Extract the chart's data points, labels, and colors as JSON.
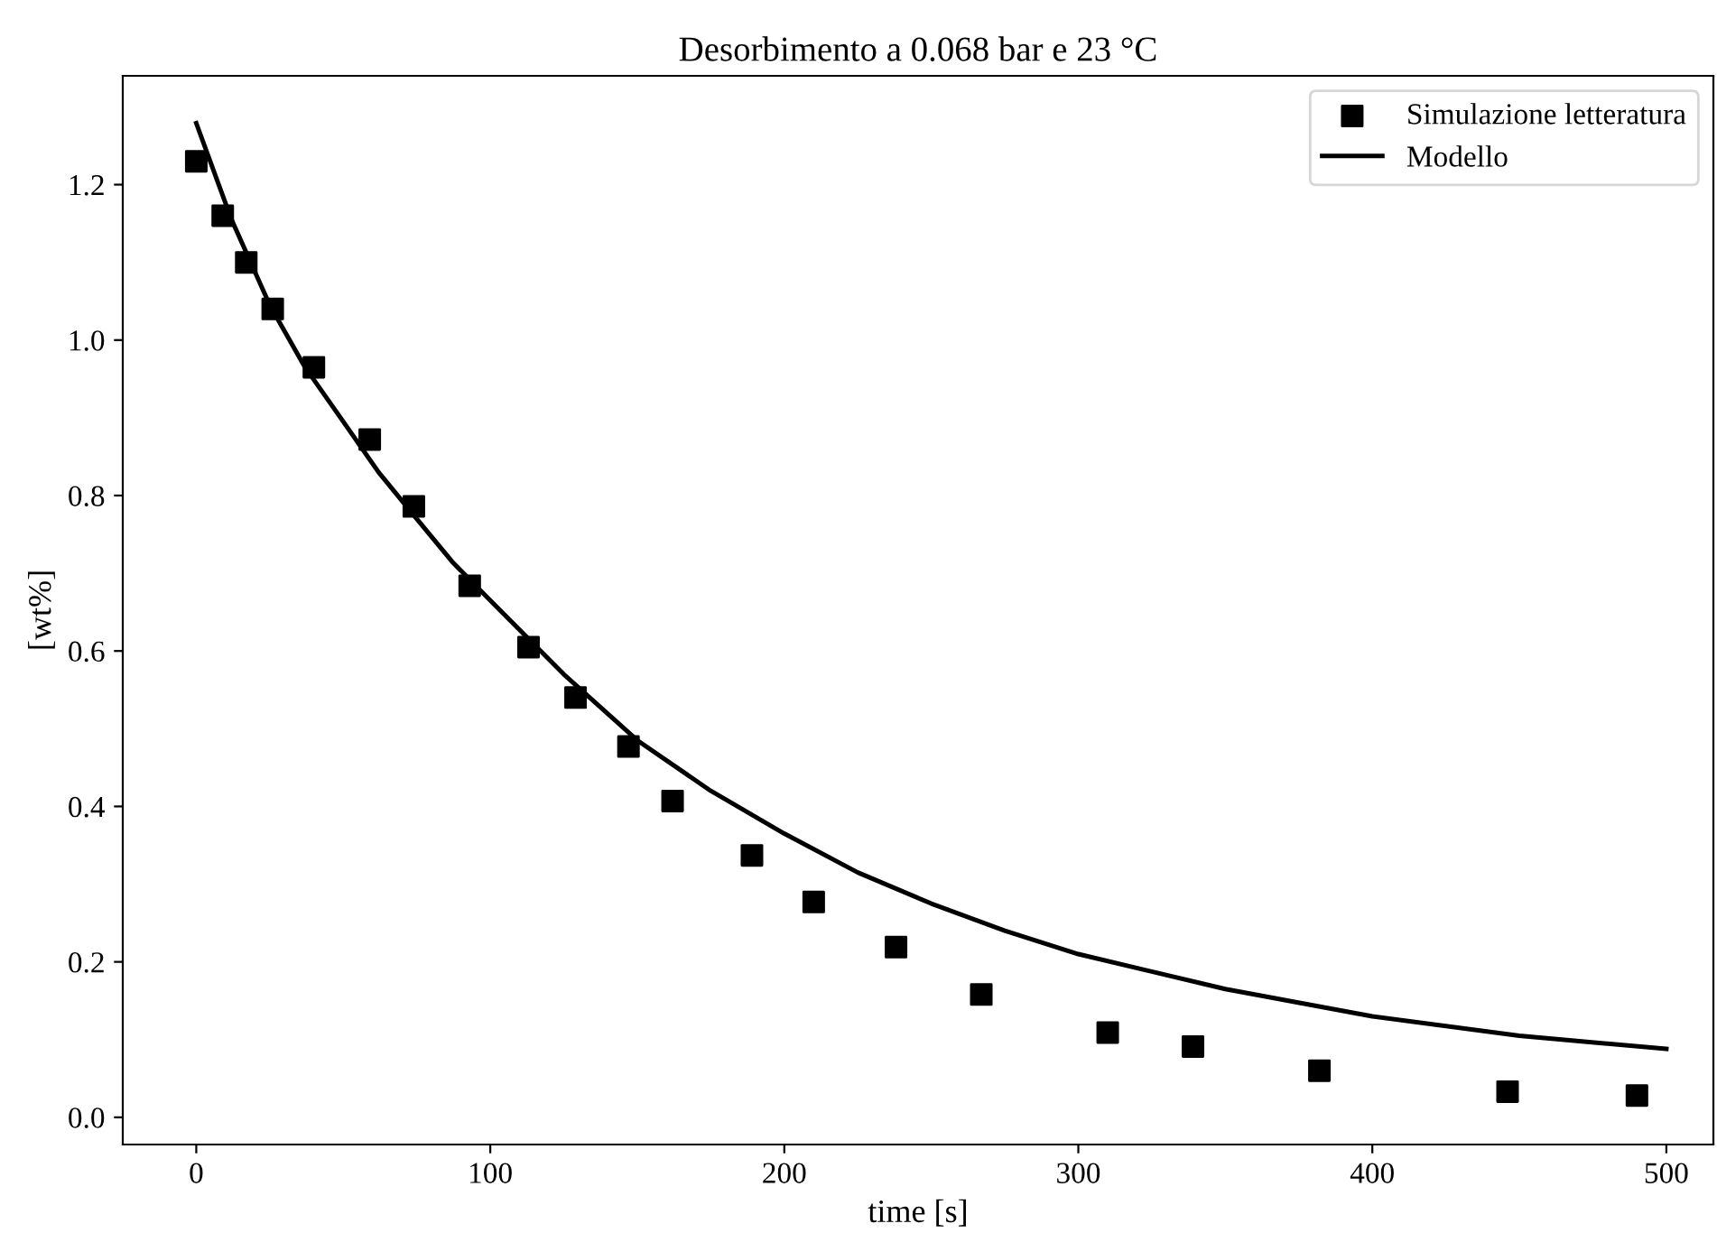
{
  "chart_data": {
    "type": "scatter",
    "title": "Desorbimento a 0.068 bar e 23 °C",
    "xlabel": "time [s]",
    "ylabel": "[wt%]",
    "xlim": [
      -25,
      516
    ],
    "ylim": [
      -0.035,
      1.34
    ],
    "xticks": [
      0,
      100,
      200,
      300,
      400,
      500
    ],
    "yticks": [
      {
        "value": 0,
        "label": "0.0"
      },
      {
        "value": 0.2,
        "label": "0.2"
      },
      {
        "value": 0.4,
        "label": "0.4"
      },
      {
        "value": 0.6,
        "label": "0.6"
      },
      {
        "value": 0.8,
        "label": "0.8"
      },
      {
        "value": 1.0,
        "label": "1.0"
      },
      {
        "value": 1.2,
        "label": "1.2"
      }
    ],
    "grid": false,
    "legend": "top right",
    "series": [
      {
        "name": "Simulazione letteratura",
        "marker": "square",
        "color": "#000000",
        "x": [
          0,
          9,
          17,
          26,
          40,
          59,
          74,
          93,
          113,
          129,
          147,
          162,
          189,
          210,
          238,
          267,
          310,
          339,
          382,
          446,
          490
        ],
        "values": [
          1.23,
          1.16,
          1.1,
          1.04,
          0.965,
          0.872,
          0.786,
          0.684,
          0.605,
          0.54,
          0.477,
          0.407,
          0.337,
          0.277,
          0.219,
          0.158,
          0.109,
          0.091,
          0.06,
          0.033,
          0.028
        ]
      },
      {
        "name": "Modello",
        "type": "line",
        "marker": "none",
        "line_style": "solid",
        "color": "#000000",
        "x": [
          0,
          12,
          25,
          37,
          50,
          62,
          75,
          87,
          100,
          125,
          150,
          175,
          200,
          225,
          250,
          275,
          300,
          350,
          400,
          450,
          500
        ],
        "values": [
          1.279,
          1.155,
          1.045,
          0.965,
          0.895,
          0.83,
          0.77,
          0.715,
          0.665,
          0.57,
          0.485,
          0.42,
          0.365,
          0.315,
          0.275,
          0.24,
          0.21,
          0.165,
          0.13,
          0.105,
          0.088
        ]
      }
    ]
  }
}
